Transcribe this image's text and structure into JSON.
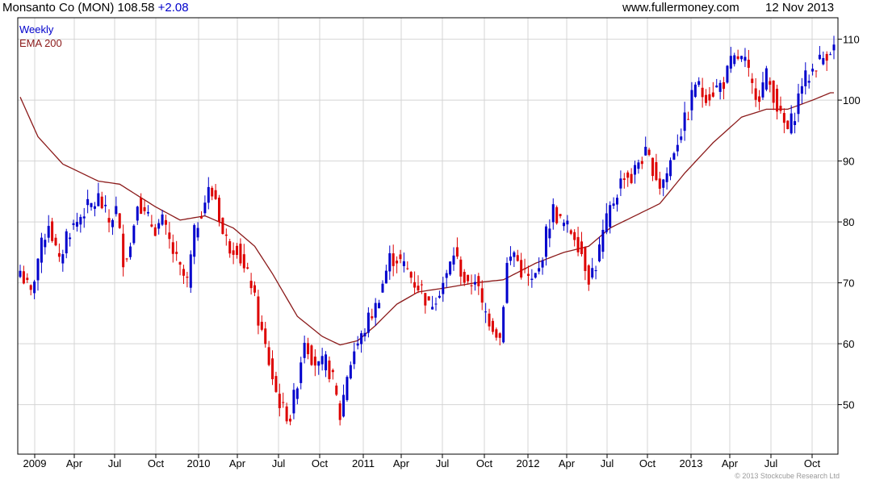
{
  "header": {
    "symbol_text": "Monsanto Co (MON) 108.58",
    "change": "+2.08",
    "site": "www.fullermoney.com",
    "date": "12 Nov 2013"
  },
  "legend": {
    "period": "Weekly",
    "ema_label": "EMA 200"
  },
  "footer": {
    "copyright": "© 2013 Stockcube Research Ltd"
  },
  "colors": {
    "up": "#0000cc",
    "down": "#dd0000",
    "ema": "#8b1a1a",
    "grid": "#d4d4d4",
    "axis": "#000000",
    "change": "#0000cc"
  },
  "chart_data": {
    "type": "candlestick",
    "title": "Monsanto Co (MON) 108.58 +2.08",
    "period": "Weekly",
    "x_tick_labels": [
      "2009",
      "Apr",
      "Jul",
      "Oct",
      "2010",
      "Apr",
      "Jul",
      "Oct",
      "2011",
      "Apr",
      "Jul",
      "Oct",
      "2012",
      "Apr",
      "Jul",
      "Oct",
      "2013",
      "Apr",
      "Jul",
      "Oct"
    ],
    "y_ticks": [
      50,
      60,
      70,
      80,
      90,
      100,
      110
    ],
    "y_range": [
      42,
      111
    ],
    "grid": true,
    "series": [
      {
        "name": "Weekly",
        "kind": "close_path",
        "points": [
          [
            0,
            72
          ],
          [
            3,
            68
          ],
          [
            5,
            74
          ],
          [
            8,
            80
          ],
          [
            11,
            73
          ],
          [
            13,
            78
          ],
          [
            16,
            80
          ],
          [
            18,
            82
          ],
          [
            21,
            83
          ],
          [
            22,
            84
          ],
          [
            25,
            80
          ],
          [
            27,
            82
          ],
          [
            29,
            74
          ],
          [
            31,
            76
          ],
          [
            33,
            84
          ],
          [
            35,
            81
          ],
          [
            38,
            79
          ],
          [
            40,
            80
          ],
          [
            43,
            75
          ],
          [
            45,
            72
          ],
          [
            47,
            70
          ],
          [
            49,
            78
          ],
          [
            51,
            82
          ],
          [
            53,
            85
          ],
          [
            55,
            84
          ],
          [
            57,
            78
          ],
          [
            59,
            76
          ],
          [
            61,
            76
          ],
          [
            63,
            72
          ],
          [
            65,
            70
          ],
          [
            67,
            64
          ],
          [
            70,
            57
          ],
          [
            72,
            52
          ],
          [
            74,
            49
          ],
          [
            76,
            48
          ],
          [
            78,
            54
          ],
          [
            80,
            61
          ],
          [
            82,
            58
          ],
          [
            84,
            56
          ],
          [
            86,
            57
          ],
          [
            88,
            54
          ],
          [
            90,
            48
          ],
          [
            92,
            55
          ],
          [
            94,
            59
          ],
          [
            96,
            61
          ],
          [
            98,
            64
          ],
          [
            100,
            66
          ],
          [
            102,
            70
          ],
          [
            104,
            74
          ],
          [
            106,
            74
          ],
          [
            109,
            72
          ],
          [
            111,
            70
          ],
          [
            113,
            69
          ],
          [
            115,
            66
          ],
          [
            117,
            68
          ],
          [
            120,
            71
          ],
          [
            122,
            75
          ],
          [
            124,
            72
          ],
          [
            126,
            69
          ],
          [
            128,
            71
          ],
          [
            130,
            66
          ],
          [
            133,
            63
          ],
          [
            135,
            61
          ],
          [
            137,
            73
          ],
          [
            139,
            75
          ],
          [
            141,
            72
          ],
          [
            144,
            70
          ],
          [
            146,
            72
          ],
          [
            148,
            78
          ],
          [
            150,
            82
          ],
          [
            152,
            80
          ],
          [
            154,
            79
          ],
          [
            156,
            78
          ],
          [
            158,
            75
          ],
          [
            160,
            71
          ],
          [
            162,
            73
          ],
          [
            164,
            78
          ],
          [
            166,
            82
          ],
          [
            168,
            85
          ],
          [
            170,
            88
          ],
          [
            172,
            87
          ],
          [
            174,
            90
          ],
          [
            176,
            91
          ],
          [
            178,
            89
          ],
          [
            180,
            86
          ],
          [
            182,
            88
          ],
          [
            184,
            92
          ],
          [
            186,
            95
          ],
          [
            188,
            98
          ],
          [
            190,
            103
          ],
          [
            192,
            101
          ],
          [
            194,
            101
          ],
          [
            196,
            102
          ],
          [
            198,
            103
          ],
          [
            200,
            106
          ],
          [
            202,
            107
          ],
          [
            204,
            106
          ],
          [
            206,
            102
          ],
          [
            208,
            101
          ],
          [
            210,
            104
          ],
          [
            212,
            101
          ],
          [
            214,
            97
          ],
          [
            216,
            95
          ],
          [
            218,
            98
          ],
          [
            220,
            103
          ],
          [
            222,
            104
          ],
          [
            224,
            106
          ],
          [
            226,
            107
          ],
          [
            228,
            108.58
          ]
        ]
      },
      {
        "name": "EMA 200",
        "kind": "ema",
        "points": [
          [
            0,
            100.5
          ],
          [
            5,
            94
          ],
          [
            12,
            89.5
          ],
          [
            22,
            86.7
          ],
          [
            28,
            86.2
          ],
          [
            38,
            82.5
          ],
          [
            45,
            80.3
          ],
          [
            52,
            81
          ],
          [
            60,
            79
          ],
          [
            66,
            76
          ],
          [
            71,
            71.5
          ],
          [
            78,
            64.5
          ],
          [
            85,
            61.2
          ],
          [
            90,
            59.8
          ],
          [
            95,
            60.5
          ],
          [
            100,
            63
          ],
          [
            106,
            66.5
          ],
          [
            112,
            68.5
          ],
          [
            120,
            69.2
          ],
          [
            128,
            70
          ],
          [
            136,
            70.5
          ],
          [
            145,
            73.2
          ],
          [
            153,
            75
          ],
          [
            160,
            76
          ],
          [
            166,
            79
          ],
          [
            173,
            81
          ],
          [
            180,
            83
          ],
          [
            187,
            88
          ],
          [
            195,
            93
          ],
          [
            203,
            97.2
          ],
          [
            210,
            98.5
          ],
          [
            216,
            98.5
          ],
          [
            223,
            100
          ],
          [
            228,
            101.2
          ]
        ]
      }
    ]
  }
}
